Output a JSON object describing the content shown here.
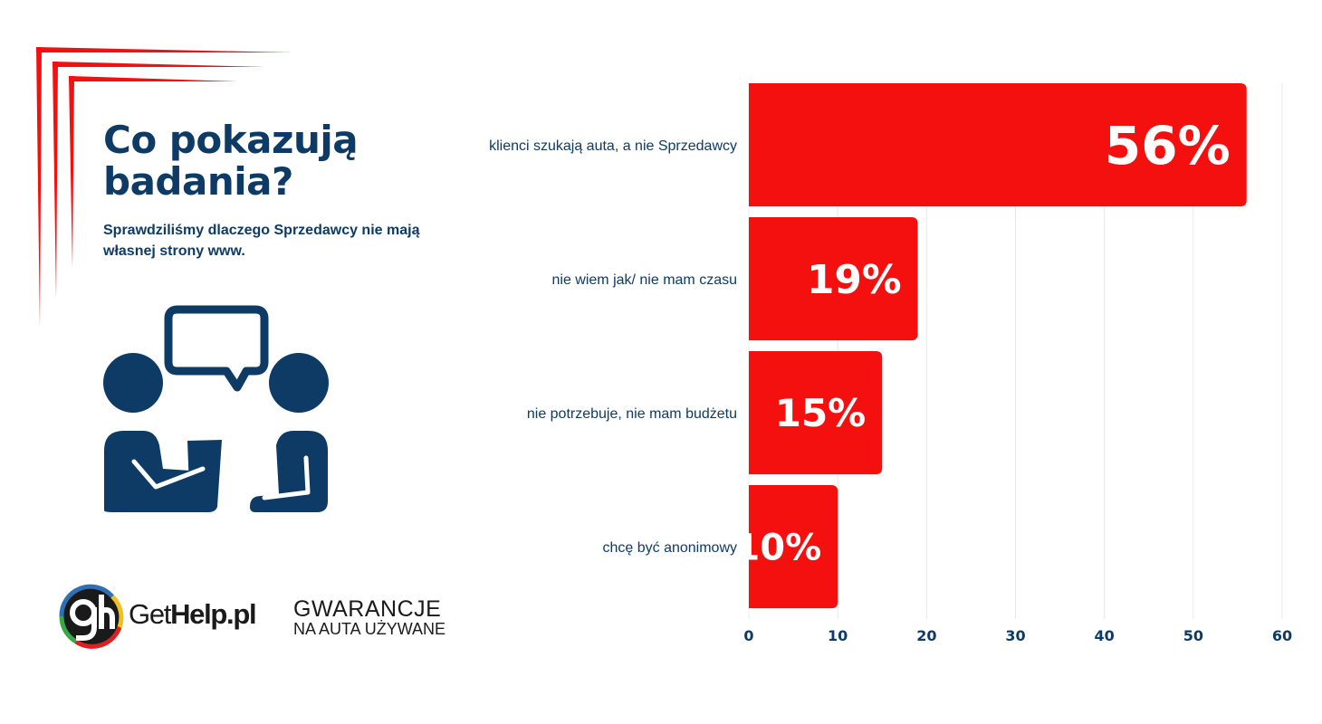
{
  "header": {
    "title": "Co pokazują badania?",
    "subtitle": "Sprawdziliśmy dlaczego Sprzedawcy nie mają własnej strony www."
  },
  "logo": {
    "brand_light": "Get",
    "brand_bold": "Help.pl",
    "tagline_1": "GWARANCJE",
    "tagline_2": "NA AUTA UŻYWANE"
  },
  "colors": {
    "accent": "#f51010",
    "navy": "#0d3b66"
  },
  "chart_data": {
    "type": "bar",
    "orientation": "horizontal",
    "categories": [
      "klienci szukają auta, a nie Sprzedawcy",
      "nie wiem jak/ nie mam czasu",
      "nie potrzebuje, nie mam budżetu",
      "chcę być anonimowy"
    ],
    "values": [
      56,
      19,
      15,
      10
    ],
    "data_labels": [
      "56%",
      "19%",
      "15%",
      "10%"
    ],
    "xlim": [
      0,
      60
    ],
    "xticks": [
      "0",
      "10",
      "20",
      "30",
      "40",
      "50",
      "60"
    ],
    "grid": true
  }
}
